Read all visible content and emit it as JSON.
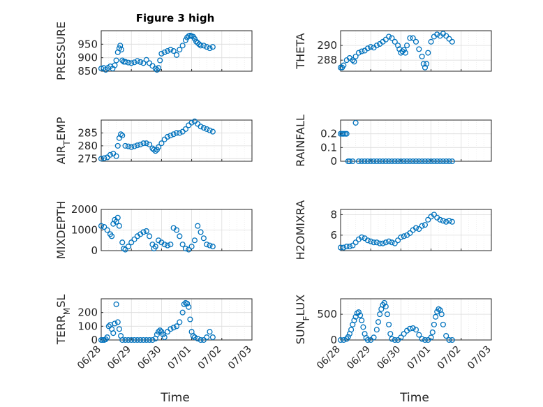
{
  "figure": {
    "title": "Figure 3 high",
    "xlabel_left": "Time",
    "xlabel_right": "Time"
  },
  "chart_data": [
    {
      "type": "scatter",
      "title": "Figure 3 high",
      "xlabel": "",
      "ylabel": "PRESSURE",
      "ylim": [
        850,
        1000
      ],
      "yticks": [
        850,
        900,
        950
      ],
      "xlim": [
        0,
        5
      ],
      "xticks": [
        0,
        1,
        2,
        3,
        4,
        5
      ],
      "xticklabels": [],
      "grid": true,
      "marker_color": "#0072BD",
      "x": [
        0,
        0.08,
        0.15,
        0.22,
        0.3,
        0.38,
        0.45,
        0.5,
        0.55,
        0.6,
        0.63,
        0.67,
        0.7,
        0.75,
        0.8,
        0.9,
        1.0,
        1.1,
        1.2,
        1.3,
        1.4,
        1.5,
        1.6,
        1.7,
        1.8,
        1.85,
        1.9,
        1.95,
        2.0,
        2.1,
        2.2,
        2.3,
        2.4,
        2.5,
        2.6,
        2.7,
        2.8,
        2.85,
        2.9,
        2.95,
        3.0,
        3.05,
        3.1,
        3.15,
        3.2,
        3.25,
        3.3,
        3.4,
        3.5,
        3.6,
        3.7
      ],
      "y": [
        860,
        862,
        855,
        862,
        868,
        860,
        872,
        890,
        920,
        935,
        945,
        930,
        890,
        885,
        885,
        882,
        880,
        883,
        888,
        884,
        880,
        892,
        880,
        870,
        860,
        855,
        862,
        890,
        915,
        920,
        925,
        930,
        925,
        910,
        930,
        945,
        965,
        975,
        980,
        982,
        980,
        978,
        970,
        960,
        955,
        950,
        945,
        945,
        940,
        935,
        940
      ]
    },
    {
      "type": "scatter",
      "xlabel": "",
      "ylabel": "THETA",
      "ylim": [
        286.5,
        292
      ],
      "yticks": [
        288,
        290
      ],
      "xlim": [
        0,
        5
      ],
      "xticks": [
        0,
        1,
        2,
        3,
        4,
        5
      ],
      "xticklabels": [],
      "grid": true,
      "marker_color": "#0072BD",
      "x": [
        0,
        0.05,
        0.1,
        0.2,
        0.3,
        0.4,
        0.45,
        0.5,
        0.6,
        0.7,
        0.8,
        0.9,
        1.0,
        1.1,
        1.2,
        1.3,
        1.4,
        1.5,
        1.6,
        1.7,
        1.8,
        1.9,
        1.95,
        2.0,
        2.05,
        2.1,
        2.15,
        2.2,
        2.3,
        2.4,
        2.5,
        2.6,
        2.7,
        2.75,
        2.8,
        2.85,
        2.9,
        3.0,
        3.1,
        3.2,
        3.3,
        3.4,
        3.5,
        3.6,
        3.7
      ],
      "y": [
        287,
        287,
        287.3,
        288,
        288.3,
        288,
        287.8,
        288.5,
        289,
        289.2,
        289.3,
        289.6,
        289.8,
        289.7,
        290,
        290.2,
        290.5,
        290.8,
        291.2,
        291,
        290.5,
        290,
        289.5,
        289,
        289.2,
        289.4,
        289,
        290,
        291,
        291,
        290.5,
        289.5,
        288.5,
        287.5,
        287,
        287.5,
        289,
        290.5,
        291.2,
        291.5,
        291.3,
        291.6,
        291.3,
        290.9,
        290.5
      ]
    },
    {
      "type": "scatter",
      "xlabel": "",
      "ylabel": "AIR_TEMP",
      "ylim": [
        274,
        290
      ],
      "yticks": [
        275,
        280,
        285
      ],
      "xlim": [
        0,
        5
      ],
      "xticks": [
        0,
        1,
        2,
        3,
        4,
        5
      ],
      "xticklabels": [],
      "grid": true,
      "marker_color": "#0072BD",
      "x": [
        0,
        0.1,
        0.2,
        0.3,
        0.4,
        0.5,
        0.55,
        0.6,
        0.65,
        0.7,
        0.8,
        0.9,
        1.0,
        1.1,
        1.2,
        1.3,
        1.4,
        1.5,
        1.6,
        1.7,
        1.75,
        1.8,
        1.85,
        1.9,
        2.0,
        2.1,
        2.2,
        2.3,
        2.4,
        2.5,
        2.6,
        2.7,
        2.8,
        2.9,
        3.0,
        3.1,
        3.2,
        3.3,
        3.4,
        3.5,
        3.6,
        3.7
      ],
      "y": [
        275,
        275.2,
        275.5,
        276.5,
        277,
        276,
        280,
        283,
        284.5,
        284,
        280,
        279.8,
        279.5,
        279.8,
        280.2,
        280.5,
        281,
        281,
        280.5,
        279,
        278.5,
        278,
        278.5,
        279.5,
        281,
        282.5,
        283.5,
        284,
        284.5,
        285,
        285,
        285.5,
        286.5,
        288,
        289,
        289.5,
        288.5,
        287.5,
        287,
        286.5,
        286,
        285.5
      ]
    },
    {
      "type": "scatter",
      "xlabel": "",
      "ylabel": "RAINFALL",
      "ylim": [
        0,
        0.3
      ],
      "yticks": [
        0,
        0.1,
        0.2
      ],
      "xlim": [
        0,
        5
      ],
      "xticks": [
        0,
        1,
        2,
        3,
        4,
        5
      ],
      "xticklabels": [],
      "grid": true,
      "marker_color": "#0072BD",
      "x": [
        0,
        0.05,
        0.1,
        0.15,
        0.2,
        0.25,
        0.3,
        0.4,
        0.5,
        0.6,
        0.7,
        0.8,
        0.9,
        1.0,
        1.1,
        1.2,
        1.3,
        1.4,
        1.5,
        1.6,
        1.7,
        1.8,
        1.9,
        2.0,
        2.1,
        2.2,
        2.3,
        2.4,
        2.5,
        2.6,
        2.7,
        2.8,
        2.9,
        3.0,
        3.1,
        3.2,
        3.3,
        3.4,
        3.5,
        3.6,
        3.7
      ],
      "y": [
        0.2,
        0.2,
        0.2,
        0.2,
        0.2,
        0,
        0,
        0,
        0.28,
        0,
        0,
        0,
        0,
        0,
        0,
        0,
        0,
        0,
        0,
        0,
        0,
        0,
        0,
        0,
        0,
        0,
        0,
        0,
        0,
        0,
        0,
        0,
        0,
        0,
        0,
        0,
        0,
        0,
        0,
        0,
        0
      ]
    },
    {
      "type": "scatter",
      "xlabel": "",
      "ylabel": "MIXDEPTH",
      "ylim": [
        0,
        2000
      ],
      "yticks": [
        0,
        1000,
        2000
      ],
      "xlim": [
        0,
        5
      ],
      "xticks": [
        0,
        1,
        2,
        3,
        4,
        5
      ],
      "xticklabels": [],
      "grid": true,
      "marker_color": "#0072BD",
      "x": [
        0,
        0.1,
        0.2,
        0.3,
        0.35,
        0.4,
        0.45,
        0.5,
        0.55,
        0.6,
        0.7,
        0.75,
        0.8,
        0.9,
        1.0,
        1.1,
        1.2,
        1.3,
        1.4,
        1.5,
        1.6,
        1.7,
        1.75,
        1.8,
        1.9,
        2.0,
        2.1,
        2.2,
        2.3,
        2.4,
        2.5,
        2.6,
        2.7,
        2.8,
        2.9,
        3.0,
        3.1,
        3.2,
        3.3,
        3.4,
        3.5,
        3.6,
        3.7
      ],
      "y": [
        1200,
        1150,
        1000,
        800,
        700,
        1300,
        1500,
        1400,
        1600,
        1200,
        400,
        100,
        50,
        200,
        400,
        550,
        700,
        800,
        900,
        950,
        700,
        300,
        100,
        200,
        500,
        400,
        300,
        250,
        300,
        1100,
        1000,
        700,
        300,
        100,
        50,
        200,
        500,
        1200,
        900,
        600,
        300,
        250,
        200
      ]
    },
    {
      "type": "scatter",
      "xlabel": "",
      "ylabel": "H2OMIXRA",
      "ylim": [
        4.5,
        8.5
      ],
      "yticks": [
        6,
        8
      ],
      "xlim": [
        0,
        5
      ],
      "xticks": [
        0,
        1,
        2,
        3,
        4,
        5
      ],
      "xticklabels": [],
      "grid": true,
      "marker_color": "#0072BD",
      "x": [
        0,
        0.1,
        0.2,
        0.3,
        0.4,
        0.5,
        0.6,
        0.7,
        0.8,
        0.9,
        1.0,
        1.1,
        1.2,
        1.3,
        1.4,
        1.5,
        1.6,
        1.7,
        1.8,
        1.9,
        2.0,
        2.1,
        2.2,
        2.3,
        2.4,
        2.5,
        2.6,
        2.7,
        2.8,
        2.9,
        3.0,
        3.1,
        3.2,
        3.3,
        3.4,
        3.5,
        3.6,
        3.7
      ],
      "y": [
        4.8,
        4.8,
        4.9,
        4.9,
        5.0,
        5.3,
        5.6,
        5.8,
        5.7,
        5.5,
        5.4,
        5.3,
        5.3,
        5.2,
        5.2,
        5.3,
        5.4,
        5.3,
        5.2,
        5.5,
        5.8,
        5.9,
        6.0,
        6.2,
        6.5,
        6.7,
        6.6,
        6.9,
        7.0,
        7.5,
        7.8,
        8.0,
        7.7,
        7.5,
        7.4,
        7.3,
        7.4,
        7.3
      ]
    },
    {
      "type": "scatter",
      "xlabel": "Time",
      "ylabel": "TERR_MSL",
      "ylim": [
        0,
        300
      ],
      "yticks": [
        0,
        100,
        200
      ],
      "xlim": [
        0,
        5
      ],
      "xticks": [
        0,
        1,
        2,
        3,
        4,
        5
      ],
      "xticklabels": [
        "06/28",
        "06/29",
        "06/30",
        "07/01",
        "07/02",
        "07/03"
      ],
      "grid": true,
      "marker_color": "#0072BD",
      "x": [
        0,
        0.05,
        0.1,
        0.15,
        0.2,
        0.25,
        0.3,
        0.35,
        0.4,
        0.45,
        0.5,
        0.55,
        0.6,
        0.65,
        0.7,
        0.8,
        0.9,
        1.0,
        1.1,
        1.2,
        1.3,
        1.4,
        1.5,
        1.6,
        1.7,
        1.8,
        1.85,
        1.9,
        1.95,
        2.0,
        2.05,
        2.1,
        2.2,
        2.3,
        2.4,
        2.5,
        2.6,
        2.7,
        2.75,
        2.8,
        2.85,
        2.9,
        2.95,
        3.0,
        3.05,
        3.1,
        3.2,
        3.3,
        3.4,
        3.5,
        3.6,
        3.7
      ],
      "y": [
        0,
        0,
        0,
        5,
        20,
        100,
        110,
        80,
        50,
        120,
        260,
        130,
        80,
        30,
        0,
        0,
        0,
        0,
        0,
        0,
        0,
        0,
        0,
        0,
        0,
        10,
        40,
        60,
        70,
        60,
        40,
        20,
        60,
        80,
        90,
        100,
        130,
        200,
        260,
        270,
        265,
        240,
        150,
        60,
        30,
        20,
        10,
        0,
        0,
        20,
        60,
        20
      ]
    },
    {
      "type": "scatter",
      "xlabel": "Time",
      "ylabel": "SUN_FLUX",
      "ylim": [
        0,
        800
      ],
      "yticks": [
        0,
        500
      ],
      "xlim": [
        0,
        5
      ],
      "xticks": [
        0,
        1,
        2,
        3,
        4,
        5
      ],
      "xticklabels": [
        "06/28",
        "06/29",
        "06/30",
        "07/01",
        "07/02",
        "07/03"
      ],
      "grid": true,
      "marker_color": "#0072BD",
      "x": [
        0,
        0.1,
        0.2,
        0.25,
        0.3,
        0.35,
        0.4,
        0.45,
        0.5,
        0.55,
        0.6,
        0.65,
        0.7,
        0.75,
        0.8,
        0.85,
        0.9,
        1.0,
        1.1,
        1.2,
        1.25,
        1.3,
        1.35,
        1.4,
        1.45,
        1.5,
        1.55,
        1.6,
        1.65,
        1.7,
        1.8,
        1.9,
        2.0,
        2.1,
        2.2,
        2.3,
        2.4,
        2.5,
        2.6,
        2.7,
        2.8,
        2.9,
        3.0,
        3.05,
        3.1,
        3.15,
        3.2,
        3.25,
        3.3,
        3.35,
        3.4,
        3.5,
        3.6,
        3.7
      ],
      "y": [
        0,
        0,
        20,
        60,
        120,
        200,
        300,
        380,
        450,
        520,
        540,
        480,
        380,
        250,
        120,
        40,
        0,
        0,
        50,
        200,
        350,
        500,
        600,
        680,
        720,
        650,
        500,
        300,
        120,
        20,
        0,
        0,
        50,
        120,
        180,
        220,
        230,
        200,
        100,
        20,
        0,
        0,
        50,
        150,
        300,
        450,
        550,
        600,
        580,
        500,
        300,
        80,
        0,
        0
      ]
    }
  ]
}
